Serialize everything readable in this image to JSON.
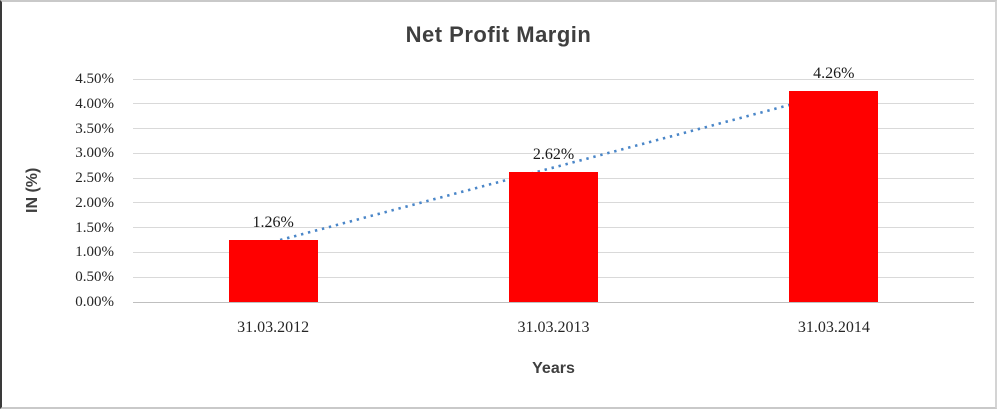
{
  "chart_data": {
    "type": "bar",
    "title": "Net Profit Margin",
    "xlabel": "Years",
    "ylabel": "IN (%)",
    "categories": [
      "31.03.2012",
      "31.03.2013",
      "31.03.2014"
    ],
    "values": [
      1.26,
      2.62,
      4.26
    ],
    "data_labels": [
      "1.26%",
      "2.62%",
      "4.26%"
    ],
    "ylim": [
      0,
      4.5
    ],
    "ytick_step": 0.5,
    "ytick_values": [
      4.5,
      4.0,
      3.5,
      3.0,
      2.5,
      2.0,
      1.5,
      1.0,
      0.5,
      0.0
    ],
    "ytick_labels": [
      "4.50%",
      "4.00%",
      "3.50%",
      "3.00%",
      "2.50%",
      "2.00%",
      "1.50%",
      "1.00%",
      "0.50%",
      "0.00%"
    ],
    "grid": true,
    "legend": "none",
    "bar_color": "#ff0000",
    "gridline_color": "#d9d9d9",
    "title_color": "#3f3f3f",
    "trendline": {
      "type": "linear",
      "style": "dotted",
      "color": "#4a86c8"
    }
  }
}
